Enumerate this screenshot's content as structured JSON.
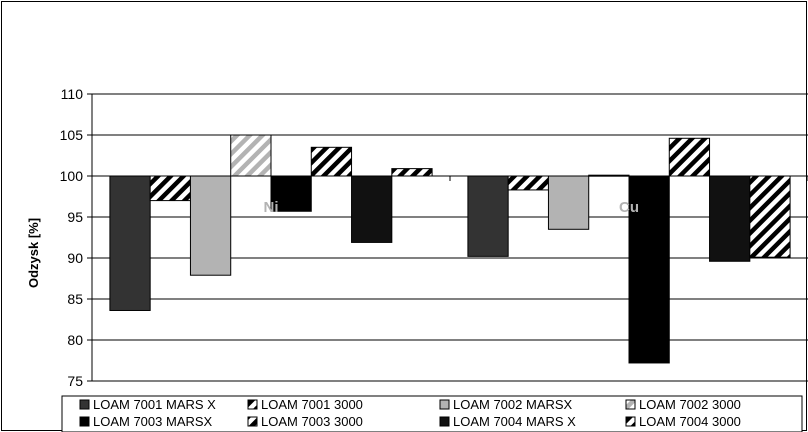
{
  "chart_data": {
    "type": "bar",
    "baseline": 100,
    "ylabel": "Odzysk [%]",
    "ylim": [
      75,
      110
    ],
    "yticks": [
      75,
      80,
      85,
      90,
      95,
      100,
      105,
      110
    ],
    "grid": true,
    "legend_position": "bottom",
    "categories": [
      "Ni",
      "Cu"
    ],
    "series": [
      {
        "name": "LOAM 7001 MARS X",
        "values": [
          83.6,
          90.2
        ],
        "pattern": "solid-dark",
        "color": "#333333"
      },
      {
        "name": "LOAM 7001 3000",
        "values": [
          97.0,
          98.3
        ],
        "pattern": "diagonal-hatch",
        "color": "#000000"
      },
      {
        "name": "LOAM 7002 MARSX",
        "values": [
          87.9,
          93.5
        ],
        "pattern": "solid-light",
        "color": "#b3b3b3"
      },
      {
        "name": "LOAM 7002 3000",
        "values": [
          105.0,
          100.1
        ],
        "pattern": "light-diagonal-hatch",
        "color": "#b3b3b3"
      },
      {
        "name": "LOAM 7003 MARSX",
        "values": [
          95.7,
          77.2
        ],
        "pattern": "solid-black",
        "color": "#000000"
      },
      {
        "name": "LOAM 7003 3000",
        "values": [
          103.5,
          104.6
        ],
        "pattern": "diagonal-hatch",
        "color": "#000000"
      },
      {
        "name": "LOAM 7004 MARS X",
        "values": [
          91.9,
          89.6
        ],
        "pattern": "solid-black",
        "color": "#111111"
      },
      {
        "name": "LOAM 7004 3000",
        "values": [
          100.9,
          90.1
        ],
        "pattern": "diagonal-hatch",
        "color": "#000000"
      }
    ],
    "category_label_color": "#b3b3b3"
  }
}
